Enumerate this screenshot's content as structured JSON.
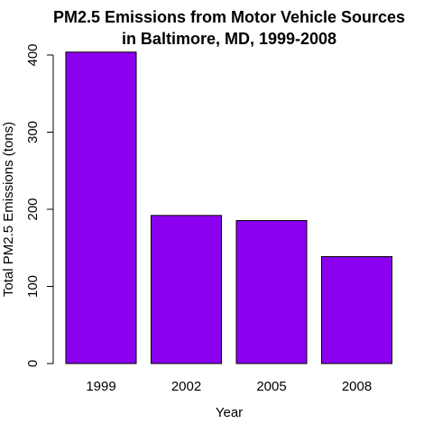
{
  "chart_data": {
    "type": "bar",
    "title_lines": [
      "PM2.5 Emissions from Motor Vehicle Sources",
      "in Baltimore, MD, 1999-2008"
    ],
    "xlabel": "Year",
    "ylabel": "Total PM2.5 Emissions (tons)",
    "categories": [
      "1999",
      "2002",
      "2005",
      "2008"
    ],
    "values": [
      403.8,
      192.0,
      185.4,
      138.6
    ],
    "yticks": [
      0,
      100,
      200,
      300,
      400
    ],
    "ylim": [
      0,
      424
    ],
    "grid": false,
    "bar_color": "#8B00EE"
  }
}
